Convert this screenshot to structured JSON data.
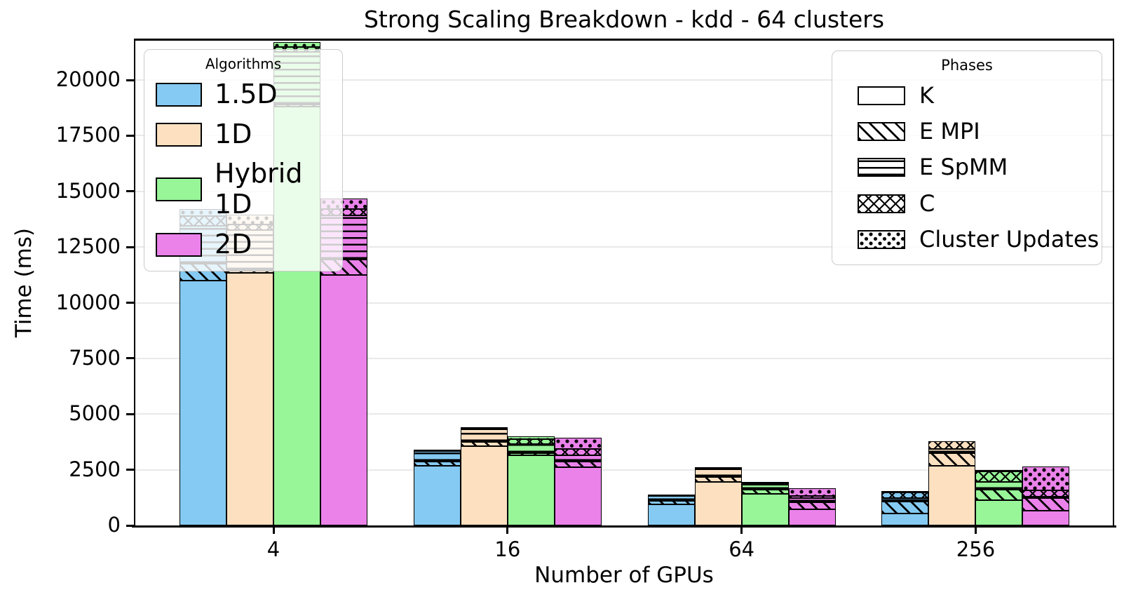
{
  "chart_data": {
    "type": "bar",
    "variant": "grouped-stacked",
    "title": "Strong Scaling Breakdown - kdd - 64 clusters",
    "xlabel": "Number of GPUs",
    "ylabel": "Time (ms)",
    "categories": [
      "4",
      "16",
      "64",
      "256"
    ],
    "yticks": [
      0,
      2500,
      5000,
      7500,
      10000,
      12500,
      15000,
      17500,
      20000
    ],
    "ylim": [
      0,
      21800
    ],
    "grid": "horizontal",
    "legends": {
      "algorithms": {
        "title": "Algorithms",
        "position": "upper-left"
      },
      "phases": {
        "title": "Phases",
        "position": "upper-right"
      }
    },
    "phases": [
      {
        "name": "K",
        "hatch": "none"
      },
      {
        "name": "E MPI",
        "hatch": "diagonal"
      },
      {
        "name": "E SpMM",
        "hatch": "horizontal"
      },
      {
        "name": "C",
        "hatch": "cross"
      },
      {
        "name": "Cluster Updates",
        "hatch": "dots"
      }
    ],
    "series": [
      {
        "name": "1.5D",
        "color": "#85caf2",
        "phases": {
          "K": [
            11000,
            2680,
            930,
            545
          ],
          "E MPI": [
            740,
            190,
            170,
            525
          ],
          "E SpMM": [
            1710,
            460,
            210,
            160
          ],
          "C": [
            440,
            20,
            25,
            250
          ],
          "Cluster Updates": [
            310,
            10,
            15,
            10
          ]
        }
      },
      {
        "name": "1D",
        "color": "#fce0c0",
        "phases": {
          "K": [
            11350,
            3570,
            1940,
            2680
          ],
          "E MPI": [
            130,
            180,
            230,
            565
          ],
          "E SpMM": [
            1780,
            560,
            340,
            190
          ],
          "C": [
            250,
            30,
            30,
            335
          ],
          "Cluster Updates": [
            440,
            40,
            30,
            0
          ]
        }
      },
      {
        "name": "Hybrid 1D",
        "color": "#98f598",
        "phases": {
          "K": [
            18800,
            3150,
            1415,
            1125
          ],
          "E MPI": [
            100,
            80,
            180,
            470
          ],
          "E SpMM": [
            2350,
            420,
            240,
            350
          ],
          "C": [
            250,
            220,
            60,
            470
          ],
          "Cluster Updates": [
            200,
            130,
            55,
            55
          ]
        }
      },
      {
        "name": "2D",
        "color": "#ea82ea",
        "phases": {
          "K": [
            11250,
            2620,
            720,
            650
          ],
          "E MPI": [
            690,
            240,
            320,
            580
          ],
          "E SpMM": [
            1990,
            290,
            190,
            60
          ],
          "C": [
            270,
            280,
            90,
            280
          ],
          "Cluster Updates": [
            480,
            510,
            350,
            1080
          ]
        }
      }
    ]
  }
}
